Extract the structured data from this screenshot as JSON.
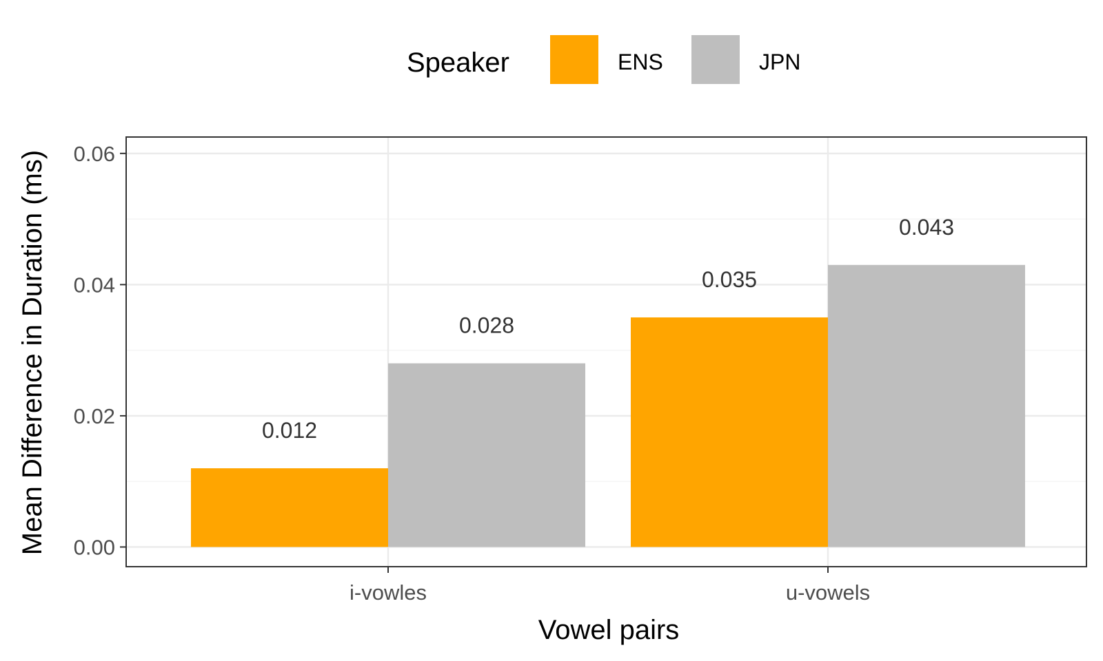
{
  "chart_data": {
    "type": "bar",
    "categories": [
      "i-vowles",
      "u-vowels"
    ],
    "series": [
      {
        "name": "ENS",
        "values": [
          0.012,
          0.035
        ],
        "color": "#FFA500"
      },
      {
        "name": "JPN",
        "values": [
          0.028,
          0.043
        ],
        "color": "#BEBEBE"
      }
    ],
    "data_labels": [
      [
        "0.012",
        "0.035"
      ],
      [
        "0.028",
        "0.043"
      ]
    ],
    "xlabel": "Vowel pairs",
    "ylabel": "Mean Difference in Duration (ms)",
    "ylim": [
      -0.003,
      0.0625
    ],
    "yticks": [
      0.0,
      0.02,
      0.04,
      0.06
    ],
    "ytick_labels": [
      "0.00",
      "0.02",
      "0.04",
      "0.06"
    ],
    "legend": {
      "title": "Speaker",
      "placement": "top"
    },
    "grid": true,
    "colors": {
      "panel_border": "#333333",
      "grid_major": "#EBEBEB",
      "grid_minor": "#F5F5F5"
    }
  }
}
